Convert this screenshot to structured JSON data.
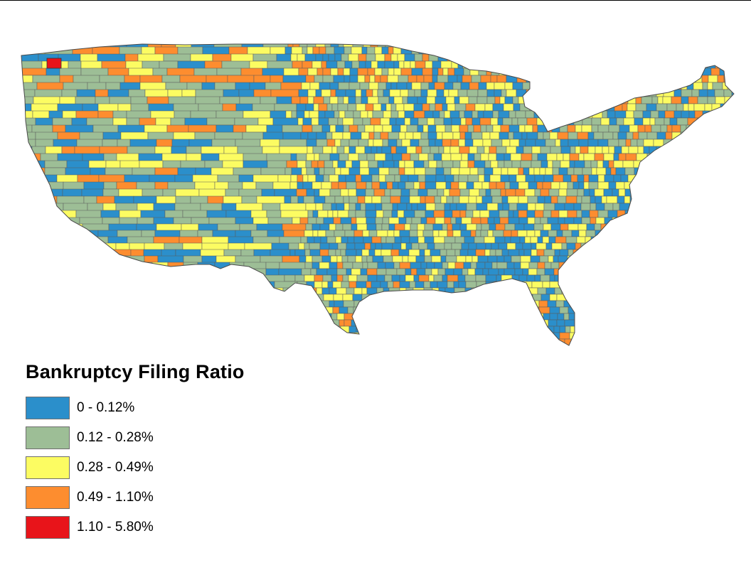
{
  "legend": {
    "title": "Bankruptcy Filing Ratio",
    "items": [
      {
        "label": "0 - 0.12%",
        "color": "#2b8fcb"
      },
      {
        "label": "0.12 - 0.28%",
        "color": "#9dbe96"
      },
      {
        "label": "0.28 - 0.49%",
        "color": "#fcfc62"
      },
      {
        "label": "0.49 - 1.10%",
        "color": "#fd8d2f"
      },
      {
        "label": "1.10 - 5.80%",
        "color": "#e8141a"
      }
    ]
  }
}
